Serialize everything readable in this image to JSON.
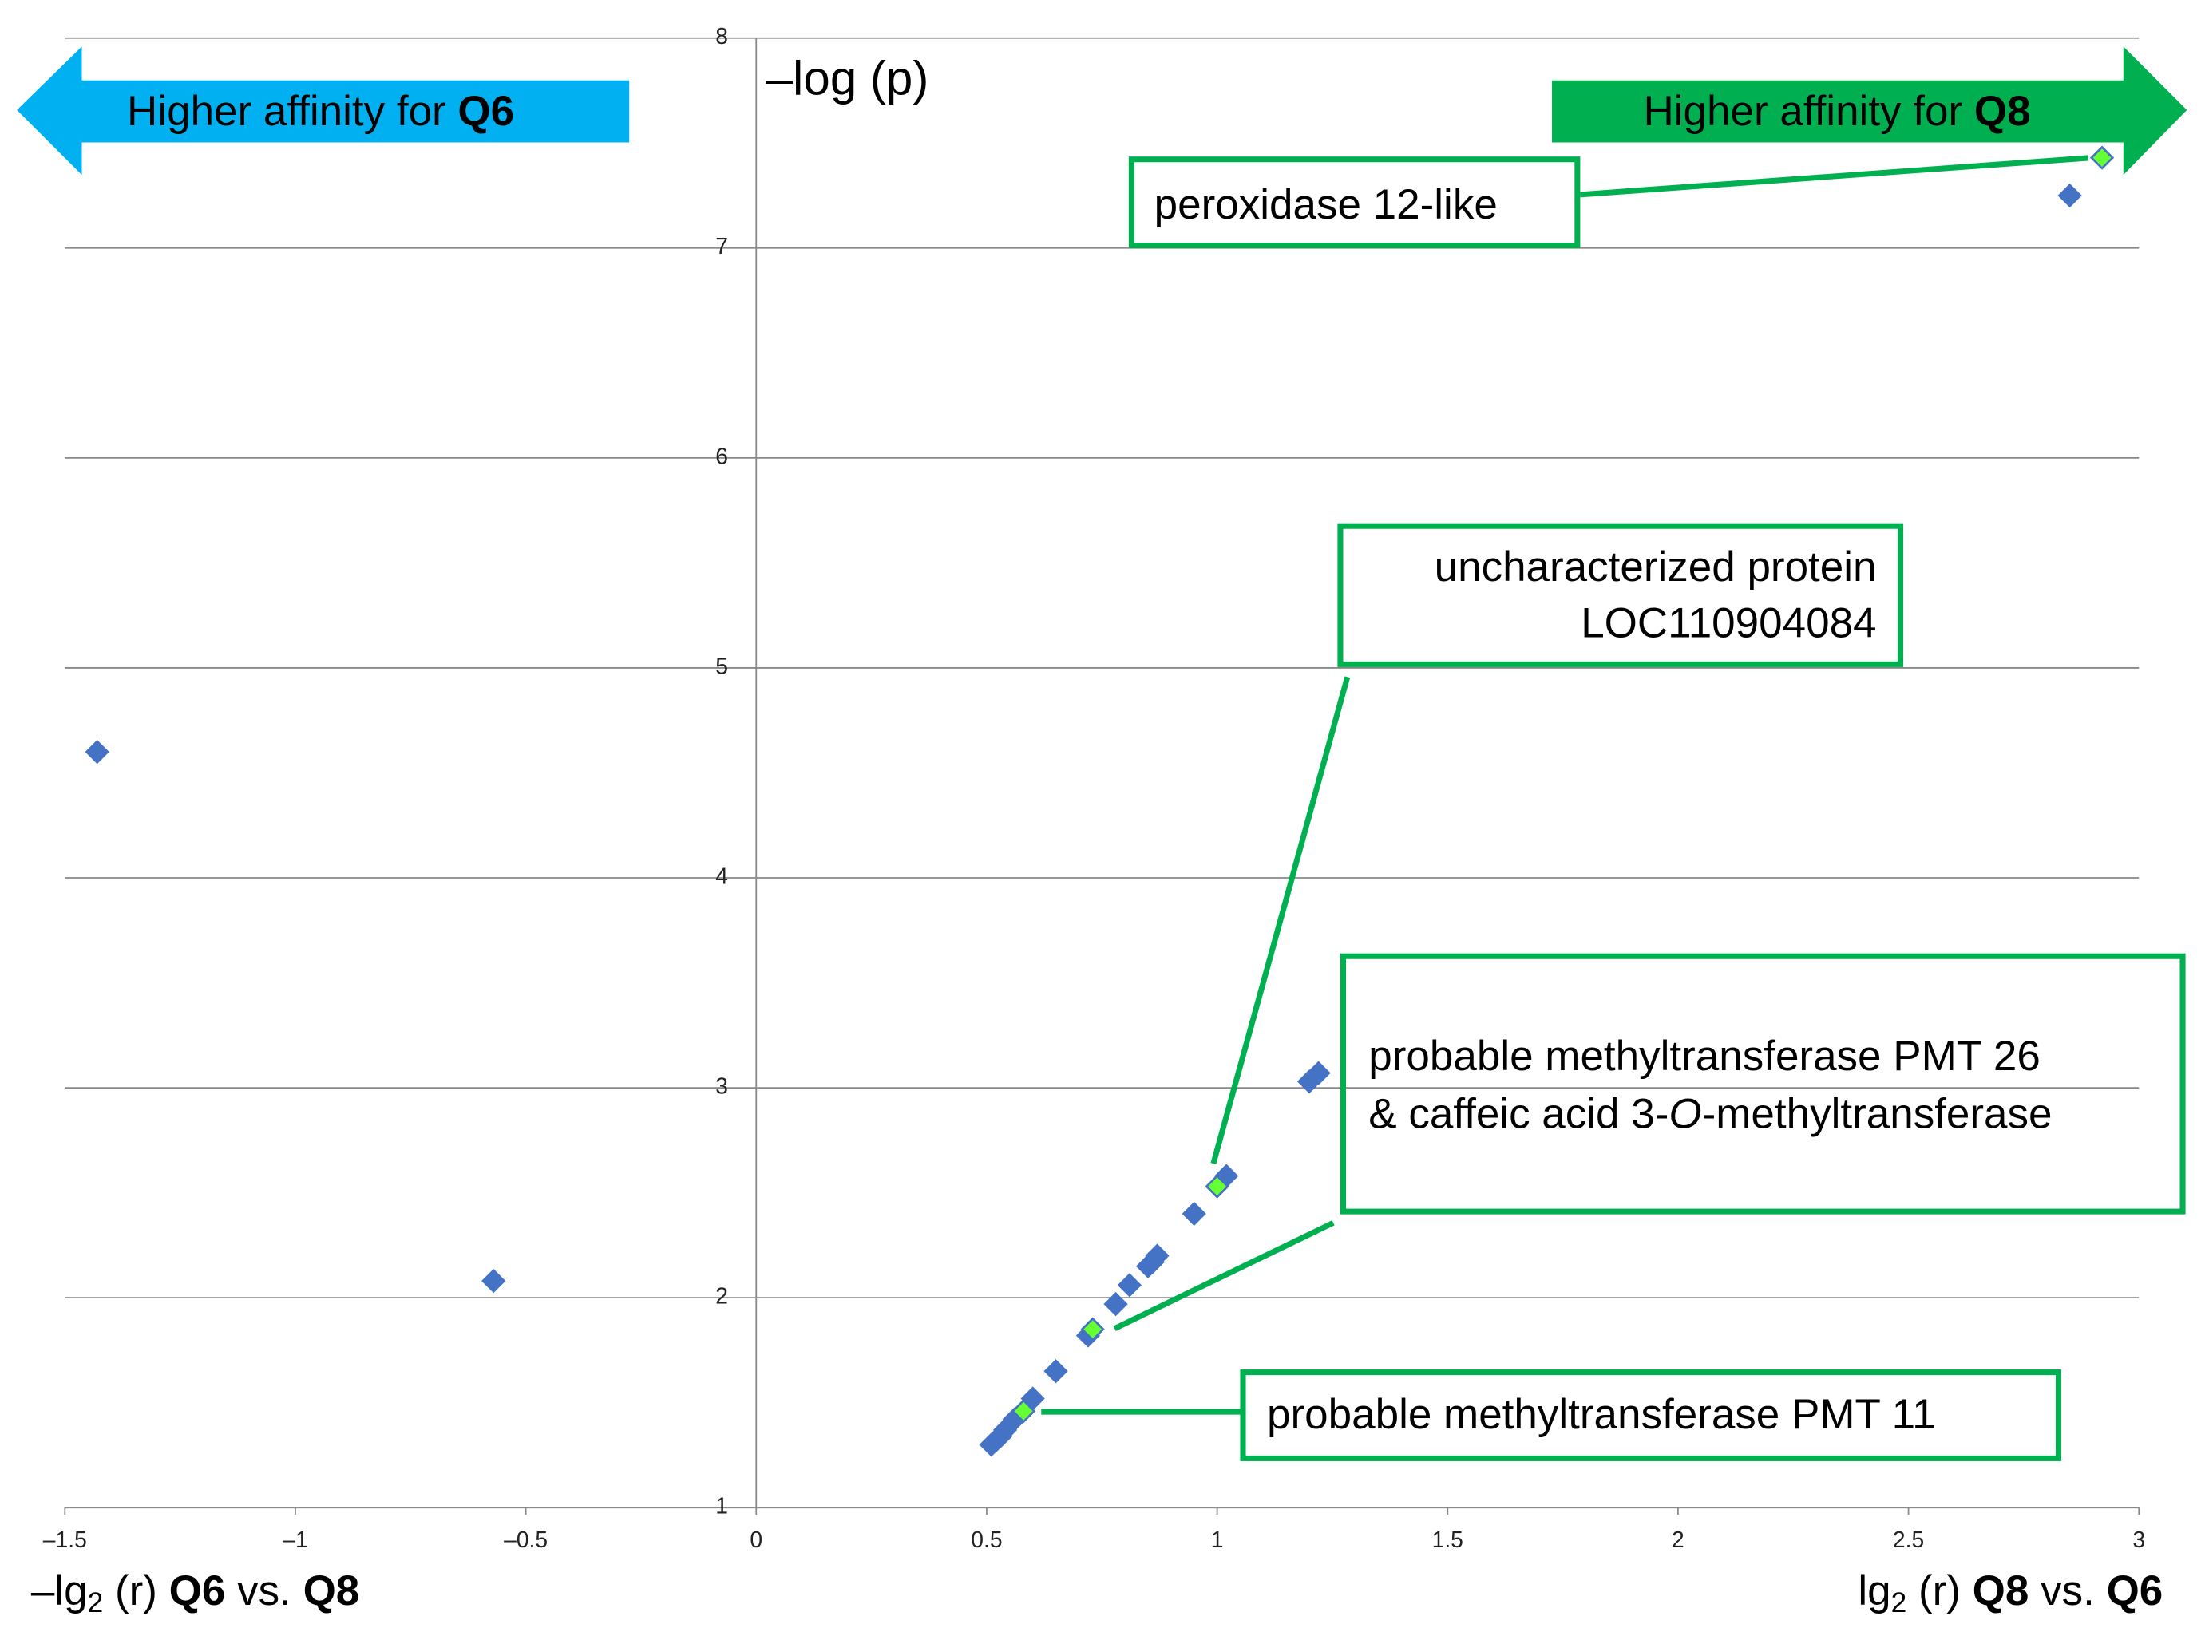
{
  "chart_data": {
    "type": "scatter",
    "y_label": "–log (p)",
    "x_label_left": [
      "–lg",
      "2",
      " (r) ",
      "Q6",
      " vs. ",
      "Q8"
    ],
    "x_label_right": [
      "lg",
      "2",
      " (r) ",
      "Q8",
      " vs. ",
      "Q6"
    ],
    "arrows": [
      {
        "text": "Higher affinity for ",
        "bold": "Q6",
        "color": "#00b0f0"
      },
      {
        "text": "Higher affinity for ",
        "bold": "Q8",
        "color": "#00b050"
      }
    ],
    "annotations": [
      {
        "lines": [
          [
            "peroxidase 12-like"
          ]
        ]
      },
      {
        "lines": [
          [
            "uncharacterized protein"
          ],
          [
            "LOC110904084"
          ]
        ]
      },
      {
        "lines": [
          [
            "probable methyltransferase PMT 26"
          ],
          [
            "& caffeic acid 3-",
            "O",
            "-methyltransferase"
          ]
        ]
      },
      {
        "lines": [
          [
            "probable methyltransferase PMT 11"
          ]
        ]
      }
    ],
    "series": [
      {
        "color": "#4472c4",
        "x": [
          -1.43,
          -0.57,
          2.85,
          1.2,
          1.22,
          1.02,
          0.95,
          0.87,
          0.86,
          0.85,
          0.81,
          0.78,
          0.72,
          0.65,
          0.6,
          0.56,
          0.54,
          0.53,
          0.52,
          0.51
        ],
        "values": [
          4.6,
          2.08,
          7.25,
          3.03,
          3.07,
          2.58,
          2.4,
          2.2,
          2.17,
          2.15,
          2.06,
          1.97,
          1.82,
          1.65,
          1.52,
          1.42,
          1.37,
          1.34,
          1.32,
          1.3
        ]
      },
      {
        "color": "#66ff33",
        "x": [
          2.92,
          1.0,
          0.73,
          0.58
        ],
        "values": [
          7.43,
          2.53,
          1.85,
          1.46
        ]
      }
    ],
    "xlim": [
      -1.5,
      3
    ],
    "ylim": [
      1,
      8
    ],
    "xticks": [
      {
        "value": -1.5,
        "label": "–1.5"
      },
      {
        "value": -1,
        "label": "–1"
      },
      {
        "value": -0.5,
        "label": "–0.5"
      },
      0,
      0.5,
      1,
      1.5,
      2,
      2.5,
      3
    ],
    "yticks": [
      1,
      2,
      3,
      4,
      5,
      6,
      7,
      8
    ],
    "grid": true
  }
}
